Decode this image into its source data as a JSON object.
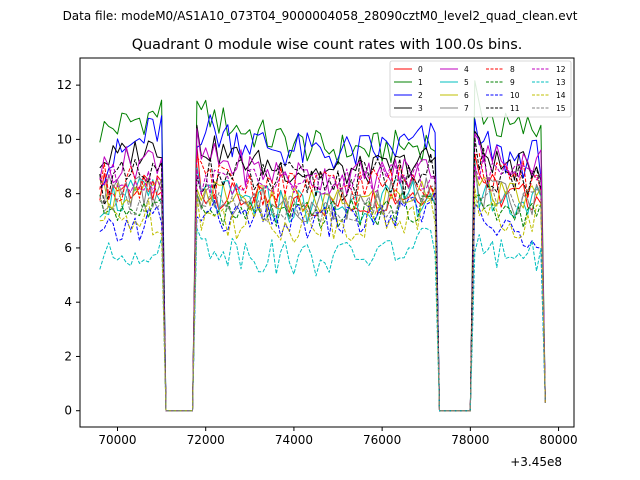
{
  "figure": {
    "suptitle": "Data file: modeM0/AS1A10_073T04_9000004058_28090cztM0_level2_quad_clean.evt"
  },
  "chart_data": {
    "type": "line",
    "title": "Quadrant 0 module wise count rates with 100.0s bins.",
    "xlabel": "",
    "ylabel": "",
    "x_offset_label": "+3.45e8",
    "xlim": [
      69150,
      80350
    ],
    "ylim": [
      -0.6,
      13.0
    ],
    "xticks": [
      70000,
      72000,
      74000,
      76000,
      78000,
      80000
    ],
    "xtick_labels": [
      "70000",
      "72000",
      "74000",
      "76000",
      "78000",
      "80000"
    ],
    "yticks": [
      0,
      2,
      4,
      6,
      8,
      10,
      12
    ],
    "ytick_labels": [
      "0",
      "2",
      "4",
      "6",
      "8",
      "10",
      "12"
    ],
    "grid": false,
    "legend": {
      "placement": "top-right",
      "ncol": 4
    },
    "segments": [
      {
        "start": 69600,
        "step": 100,
        "count": 15
      },
      {
        "start": 71100,
        "step": 100,
        "count": 1
      },
      {
        "start": 71200,
        "step": 100,
        "count": 6
      },
      {
        "start": 71800,
        "step": 100,
        "count": 55
      },
      {
        "start": 77300,
        "step": 100,
        "count": 8
      },
      {
        "start": 78100,
        "step": 100,
        "count": 17
      }
    ],
    "series": [
      {
        "name": "0",
        "color": "#ff0000",
        "dash": "solid",
        "levels": [
          8.3,
          8.1,
          8.2,
          7.0,
          9.6,
          7.9,
          0.3
        ]
      },
      {
        "name": "1",
        "color": "#008000",
        "dash": "solid",
        "levels": [
          10.3,
          11.0,
          9.9,
          9.5,
          12.0,
          10.4,
          0.4
        ]
      },
      {
        "name": "2",
        "color": "#0000ff",
        "dash": "solid",
        "levels": [
          8.9,
          10.5,
          10.0,
          9.0,
          10.3,
          9.3,
          0.4
        ]
      },
      {
        "name": "3",
        "color": "#000000",
        "dash": "solid",
        "levels": [
          9.2,
          9.8,
          9.3,
          8.3,
          10.2,
          9.0,
          0.4
        ]
      },
      {
        "name": "4",
        "color": "#bf00bf",
        "dash": "solid",
        "levels": [
          8.9,
          9.4,
          9.0,
          8.2,
          9.8,
          9.2,
          0.4
        ]
      },
      {
        "name": "5",
        "color": "#00bfbf",
        "dash": "solid",
        "levels": [
          7.8,
          7.9,
          8.0,
          7.1,
          8.6,
          7.7,
          0.3
        ]
      },
      {
        "name": "6",
        "color": "#bfbf00",
        "dash": "solid",
        "levels": [
          8.0,
          8.1,
          8.1,
          7.2,
          8.5,
          7.9,
          0.3
        ]
      },
      {
        "name": "7",
        "color": "#808080",
        "dash": "solid",
        "levels": [
          8.2,
          8.0,
          8.2,
          7.0,
          8.4,
          7.8,
          0.3
        ]
      },
      {
        "name": "8",
        "color": "#ff0000",
        "dash": "dashed",
        "levels": [
          8.4,
          8.5,
          8.6,
          7.8,
          9.2,
          8.5,
          0.3
        ]
      },
      {
        "name": "9",
        "color": "#008000",
        "dash": "dashed",
        "levels": [
          7.5,
          7.3,
          7.6,
          6.8,
          7.8,
          7.3,
          0.3
        ]
      },
      {
        "name": "10",
        "color": "#0000ff",
        "dash": "dashed",
        "levels": [
          6.3,
          7.2,
          7.4,
          6.5,
          7.4,
          6.6,
          0.3
        ]
      },
      {
        "name": "11",
        "color": "#000000",
        "dash": "dashed",
        "levels": [
          8.3,
          8.7,
          8.8,
          8.1,
          9.4,
          8.6,
          0.3
        ]
      },
      {
        "name": "12",
        "color": "#bf00bf",
        "dash": "dashed",
        "levels": [
          8.6,
          8.5,
          8.7,
          8.0,
          9.3,
          8.7,
          0.3
        ]
      },
      {
        "name": "13",
        "color": "#00bfbf",
        "dash": "dashed",
        "levels": [
          5.5,
          6.2,
          6.2,
          5.0,
          6.3,
          5.8,
          0.3
        ]
      },
      {
        "name": "14",
        "color": "#bfbf00",
        "dash": "dashed",
        "levels": [
          7.0,
          7.2,
          7.3,
          6.5,
          7.6,
          7.1,
          0.3
        ]
      },
      {
        "name": "15",
        "color": "#808080",
        "dash": "dashed",
        "levels": [
          7.8,
          7.7,
          7.9,
          6.9,
          8.0,
          7.6,
          0.3
        ]
      }
    ]
  }
}
